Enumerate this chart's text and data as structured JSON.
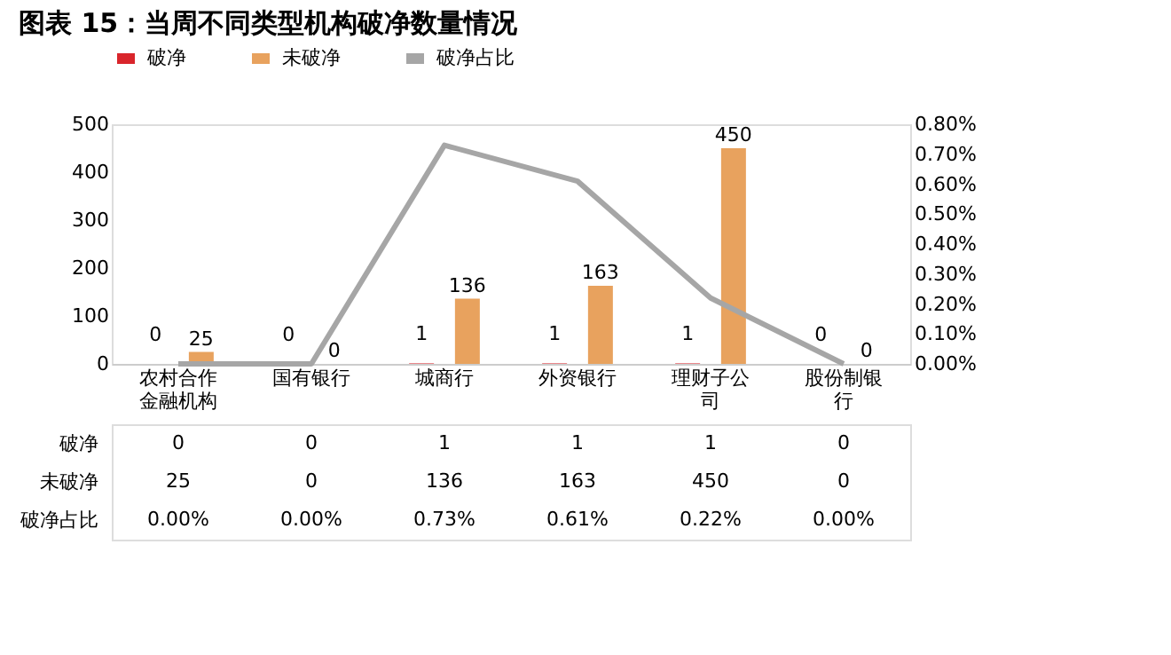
{
  "chart_data": {
    "type": "bar",
    "title": "图表 15：当周不同类型机构破净数量情况",
    "categories": [
      "农村合作金融机构",
      "国有银行",
      "城商行",
      "外资银行",
      "理财子公司",
      "股份制银行"
    ],
    "series": [
      {
        "name": "破净",
        "color": "#d9252b",
        "values": [
          0,
          0,
          1,
          1,
          1,
          0
        ],
        "value_labels": [
          "0",
          "0",
          "1",
          "1",
          "1",
          "0"
        ]
      },
      {
        "name": "未破净",
        "color": "#e8a25e",
        "values": [
          25,
          0,
          136,
          163,
          450,
          0
        ],
        "value_labels": [
          "25",
          "0",
          "136",
          "163",
          "450",
          "0"
        ]
      },
      {
        "name": "破净占比",
        "color": "#a6a6a6",
        "type": "line",
        "axis": "y2",
        "values": [
          0,
          0,
          0.73,
          0.61,
          0.22,
          0
        ],
        "value_labels": [
          "0.00%",
          "0.00%",
          "0.73%",
          "0.61%",
          "0.22%",
          "0.00%"
        ]
      }
    ],
    "ylim": [
      0,
      500
    ],
    "yticks": [
      0,
      100,
      200,
      300,
      400,
      500
    ],
    "y2lim": [
      0,
      0.8
    ],
    "y2ticks": [
      {
        "value": 0,
        "label": "0.00%"
      },
      {
        "value": 0.1,
        "label": "0.10%"
      },
      {
        "value": 0.2,
        "label": "0.20%"
      },
      {
        "value": 0.3,
        "label": "0.30%"
      },
      {
        "value": 0.4,
        "label": "0.40%"
      },
      {
        "value": 0.5,
        "label": "0.50%"
      },
      {
        "value": 0.6,
        "label": "0.60%"
      },
      {
        "value": 0.7,
        "label": "0.70%"
      },
      {
        "value": 0.8,
        "label": "0.80%"
      }
    ],
    "data_labels": true,
    "legend": "top",
    "grid": false,
    "line_style": "solid",
    "marker": "none"
  }
}
